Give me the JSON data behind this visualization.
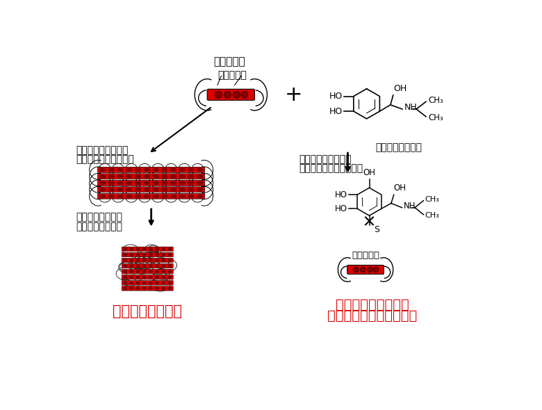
{
  "bg_color": "#ffffff",
  "text_color": "#000000",
  "red_color": "#dd0000",
  "dark_red": "#880000",
  "title_text": "単体のタウ",
  "cysteine_label": "システイン",
  "label_left1": "システインの部分で",
  "label_left2": "たくさんのタウが結合",
  "label_left3": "凝集して不溶性の",
  "label_left4": "神経原線維変化に",
  "label_right1": "システインの部分に",
  "label_right2": "イソプロテノールが結合",
  "isoproterenol_label": "イソプロテノール",
  "cysteine_label2": "システイン",
  "death_left": "ニューロンが死滅",
  "death_right1": "タウ同士が結合せず",
  "death_right2": "ニューロンが死滅しない",
  "plus_sign": "+",
  "figsize": [
    7.8,
    5.9
  ],
  "dpi": 100
}
